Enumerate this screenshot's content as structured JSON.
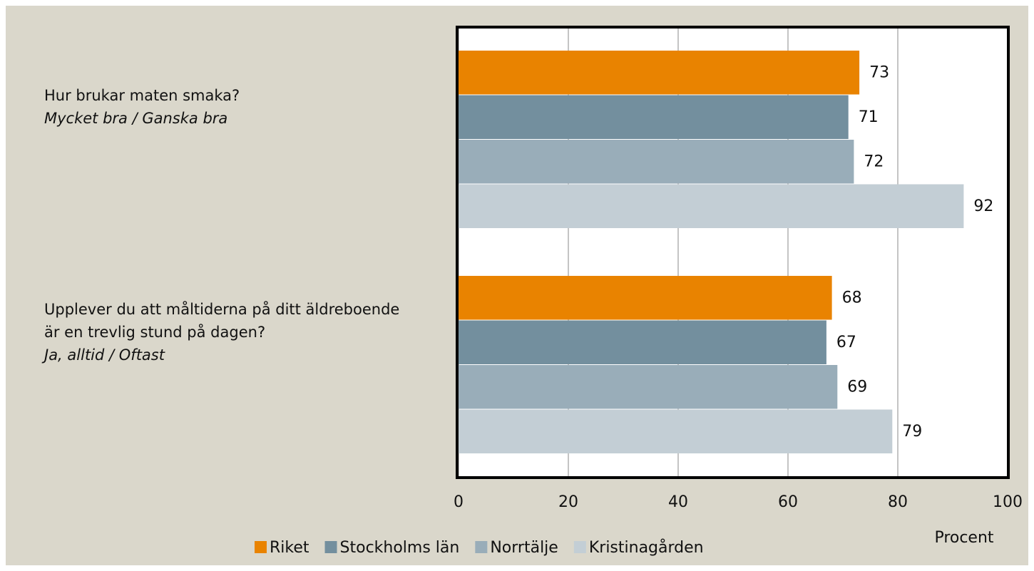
{
  "chart_data": {
    "type": "hbar",
    "categories": [
      "Hur brukar maten smaka?",
      "Upplever du att måltiderna på ditt äldreboende är en trevlig stund på dagen?"
    ],
    "category_answers": [
      "Mycket bra / Ganska bra",
      "Ja, alltid / Oftast"
    ],
    "series": [
      {
        "name": "Riket",
        "color": "#e98300",
        "values": [
          73,
          68
        ]
      },
      {
        "name": "Stockholms län",
        "color": "#738f9e",
        "values": [
          71,
          67
        ]
      },
      {
        "name": "Norrtälje",
        "color": "#99adb9",
        "values": [
          72,
          69
        ]
      },
      {
        "name": "Kristinagården",
        "color": "#c3ced5",
        "values": [
          92,
          79
        ]
      }
    ],
    "xlabel": "Procent",
    "xlim": [
      0,
      100
    ],
    "xticks": [
      0,
      20,
      40,
      60,
      80,
      100
    ],
    "grid": true
  }
}
